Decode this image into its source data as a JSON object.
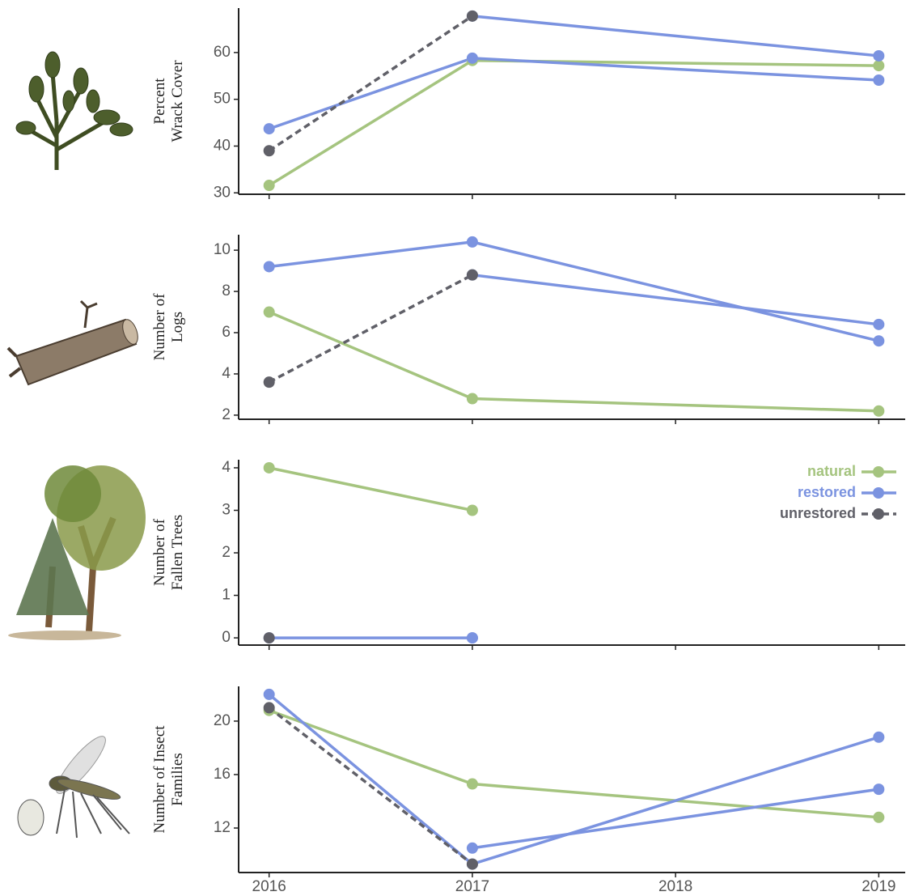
{
  "chart_data": [
    {
      "type": "line",
      "ylabel": [
        "Percent",
        "Wrack Cover"
      ],
      "x": [
        2016,
        2017,
        2019
      ],
      "xlim": [
        2015.85,
        2019.13
      ],
      "xticks": [
        2016,
        2017,
        2018,
        2019
      ],
      "ylim": [
        29.7,
        69.5
      ],
      "yticks": [
        30,
        40,
        50,
        60
      ],
      "series": [
        {
          "name": "natural",
          "color": "#a5c47f",
          "dashed": false,
          "values": [
            31.6,
            58.3,
            57.2
          ]
        },
        {
          "name": "restored",
          "color": "#7b93e0",
          "dashed": false,
          "values": [
            null,
            67.8,
            59.3
          ]
        },
        {
          "name": "restored",
          "color": "#7b93e0",
          "dashed": false,
          "values": [
            43.7,
            58.8,
            54.1
          ]
        },
        {
          "name": "unrestored",
          "color": "#606068",
          "dashed": true,
          "values": [
            39,
            67.8,
            null
          ]
        }
      ]
    },
    {
      "type": "line",
      "ylabel": [
        "Number of",
        "Logs"
      ],
      "x": [
        2016,
        2017,
        2019
      ],
      "xlim": [
        2015.85,
        2019.13
      ],
      "xticks": [
        2016,
        2017,
        2018,
        2019
      ],
      "ylim": [
        1.8,
        10.75
      ],
      "yticks": [
        2,
        4,
        6,
        8,
        10
      ],
      "series": [
        {
          "name": "natural",
          "color": "#a5c47f",
          "dashed": false,
          "values": [
            7,
            2.8,
            2.2
          ]
        },
        {
          "name": "restored",
          "color": "#7b93e0",
          "dashed": false,
          "values": [
            9.2,
            10.4,
            5.6
          ]
        },
        {
          "name": "restored",
          "color": "#7b93e0",
          "dashed": false,
          "values": [
            null,
            8.8,
            6.4
          ]
        },
        {
          "name": "unrestored",
          "color": "#606068",
          "dashed": true,
          "values": [
            3.6,
            8.8,
            null
          ]
        }
      ]
    },
    {
      "type": "line",
      "ylabel": [
        "Number of",
        "Fallen Trees"
      ],
      "x": [
        2016,
        2017,
        2019
      ],
      "xlim": [
        2015.85,
        2019.13
      ],
      "xticks": [
        2016,
        2017,
        2018,
        2019
      ],
      "ylim": [
        -0.17,
        4.19
      ],
      "yticks": [
        0,
        1,
        2,
        3,
        4
      ],
      "legend": "top-right",
      "series": [
        {
          "name": "natural",
          "color": "#a5c47f",
          "dashed": false,
          "values": [
            4,
            3,
            null
          ]
        },
        {
          "name": "restored",
          "color": "#7b93e0",
          "dashed": false,
          "values": [
            0,
            0,
            null
          ]
        },
        {
          "name": "restored",
          "color": "#7b93e0",
          "dashed": false,
          "values": [
            null,
            0,
            null
          ]
        },
        {
          "name": "unrestored",
          "color": "#606068",
          "dashed": true,
          "values": [
            0,
            null,
            null
          ]
        }
      ]
    },
    {
      "type": "line",
      "ylabel": [
        "Number of Insect",
        "Families"
      ],
      "x": [
        2016,
        2017,
        2019
      ],
      "xlim": [
        2015.85,
        2019.13
      ],
      "xticks": [
        2016,
        2017,
        2018,
        2019
      ],
      "ylim": [
        8.67,
        22.6
      ],
      "yticks": [
        12,
        16,
        20
      ],
      "series": [
        {
          "name": "natural",
          "color": "#a5c47f",
          "dashed": false,
          "values": [
            20.8,
            15.3,
            12.8
          ]
        },
        {
          "name": "restored",
          "color": "#7b93e0",
          "dashed": false,
          "values": [
            22,
            9.3,
            18.8
          ]
        },
        {
          "name": "restored",
          "color": "#7b93e0",
          "dashed": false,
          "values": [
            null,
            10.5,
            14.9
          ]
        },
        {
          "name": "unrestored",
          "color": "#606068",
          "dashed": true,
          "values": [
            21,
            9.3,
            null
          ]
        }
      ]
    }
  ]
}
